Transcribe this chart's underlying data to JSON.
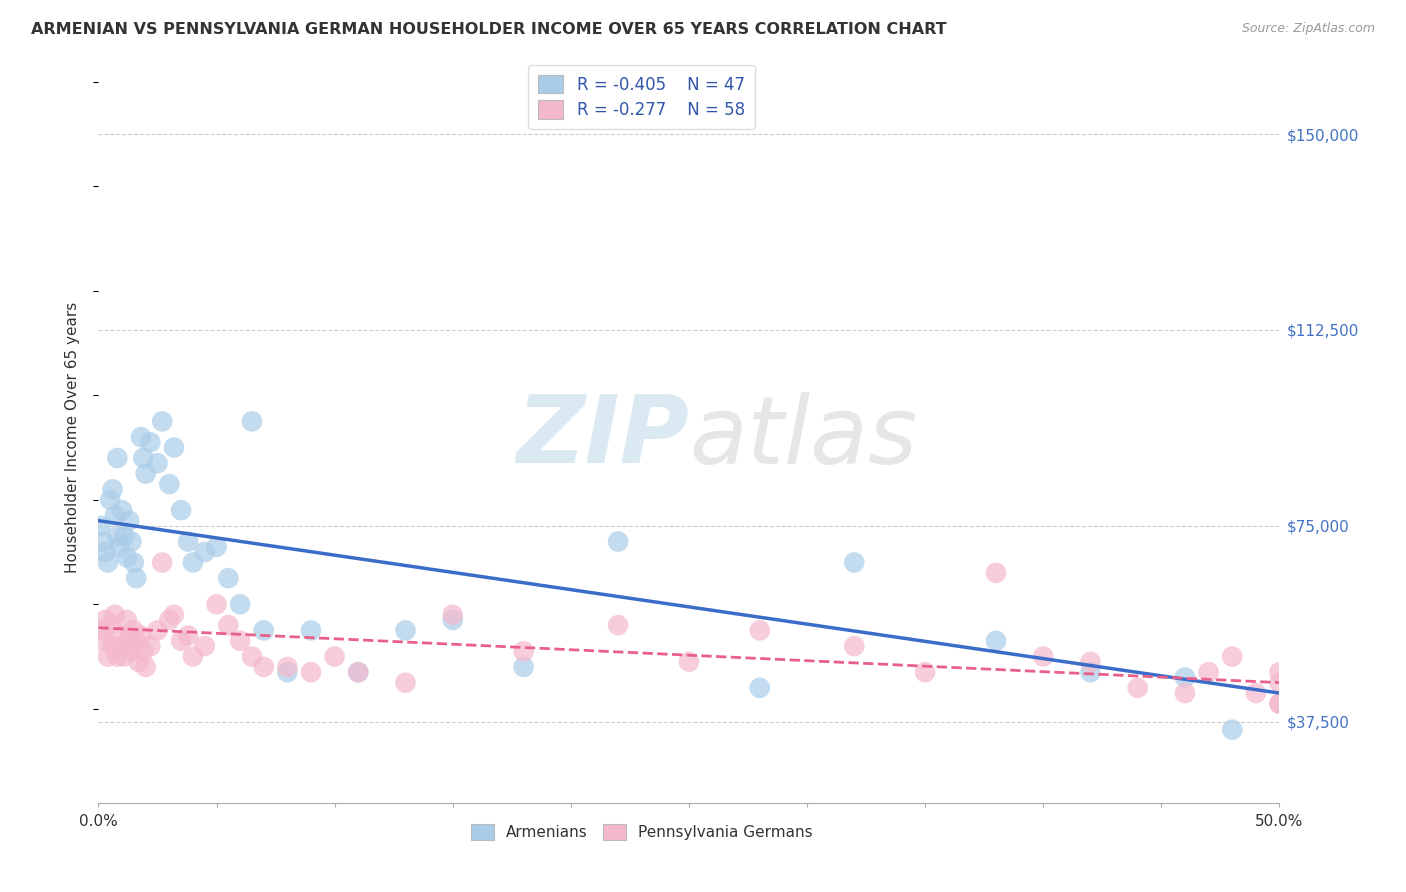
{
  "title": "ARMENIAN VS PENNSYLVANIA GERMAN HOUSEHOLDER INCOME OVER 65 YEARS CORRELATION CHART",
  "source": "Source: ZipAtlas.com",
  "ylabel": "Householder Income Over 65 years",
  "yticks": [
    37500,
    75000,
    112500,
    150000
  ],
  "ytick_labels": [
    "$37,500",
    "$75,000",
    "$112,500",
    "$150,000"
  ],
  "xlim": [
    0.0,
    0.5
  ],
  "ylim": [
    22000,
    162000
  ],
  "armenian_color": "#aacce8",
  "penn_german_color": "#f4b8cc",
  "armenian_line_color": "#3a6cc8",
  "penn_german_line_color": "#e8608a",
  "legend_r_armenian": "-0.405",
  "legend_n_armenian": "47",
  "legend_r_penn": "-0.277",
  "legend_n_penn": "58",
  "arm_line_x0": 0.0,
  "arm_line_y0": 76000,
  "arm_line_x1": 0.5,
  "arm_line_y1": 43000,
  "pg_line_x0": 0.0,
  "pg_line_y0": 55500,
  "pg_line_x1": 0.5,
  "pg_line_y1": 45000,
  "armenian_x": [
    0.001,
    0.002,
    0.003,
    0.004,
    0.005,
    0.006,
    0.007,
    0.008,
    0.008,
    0.009,
    0.01,
    0.011,
    0.012,
    0.013,
    0.014,
    0.015,
    0.016,
    0.018,
    0.019,
    0.02,
    0.022,
    0.025,
    0.027,
    0.03,
    0.032,
    0.035,
    0.038,
    0.04,
    0.045,
    0.05,
    0.055,
    0.06,
    0.065,
    0.07,
    0.08,
    0.09,
    0.11,
    0.13,
    0.15,
    0.18,
    0.22,
    0.28,
    0.32,
    0.38,
    0.42,
    0.46,
    0.48
  ],
  "armenian_y": [
    75000,
    72000,
    70000,
    68000,
    80000,
    82000,
    77000,
    73000,
    88000,
    71000,
    78000,
    73000,
    69000,
    76000,
    72000,
    68000,
    65000,
    92000,
    88000,
    85000,
    91000,
    87000,
    95000,
    83000,
    90000,
    78000,
    72000,
    68000,
    70000,
    71000,
    65000,
    60000,
    95000,
    55000,
    47000,
    55000,
    47000,
    55000,
    57000,
    48000,
    72000,
    44000,
    68000,
    53000,
    47000,
    46000,
    36000
  ],
  "penn_german_x": [
    0.001,
    0.002,
    0.003,
    0.004,
    0.005,
    0.006,
    0.007,
    0.008,
    0.009,
    0.01,
    0.011,
    0.012,
    0.013,
    0.014,
    0.015,
    0.016,
    0.017,
    0.018,
    0.019,
    0.02,
    0.022,
    0.025,
    0.027,
    0.03,
    0.032,
    0.035,
    0.038,
    0.04,
    0.045,
    0.05,
    0.055,
    0.06,
    0.065,
    0.07,
    0.08,
    0.09,
    0.1,
    0.11,
    0.13,
    0.15,
    0.18,
    0.22,
    0.25,
    0.28,
    0.32,
    0.35,
    0.38,
    0.4,
    0.42,
    0.44,
    0.46,
    0.47,
    0.48,
    0.49,
    0.5,
    0.5,
    0.5,
    0.5
  ],
  "penn_german_y": [
    55000,
    53000,
    57000,
    50000,
    56000,
    52000,
    58000,
    50000,
    54000,
    52000,
    50000,
    57000,
    54000,
    51000,
    55000,
    53000,
    49000,
    54000,
    51000,
    48000,
    52000,
    55000,
    68000,
    57000,
    58000,
    53000,
    54000,
    50000,
    52000,
    60000,
    56000,
    53000,
    50000,
    48000,
    48000,
    47000,
    50000,
    47000,
    45000,
    58000,
    51000,
    56000,
    49000,
    55000,
    52000,
    47000,
    66000,
    50000,
    49000,
    44000,
    43000,
    47000,
    50000,
    43000,
    41000,
    45000,
    41000,
    47000
  ]
}
